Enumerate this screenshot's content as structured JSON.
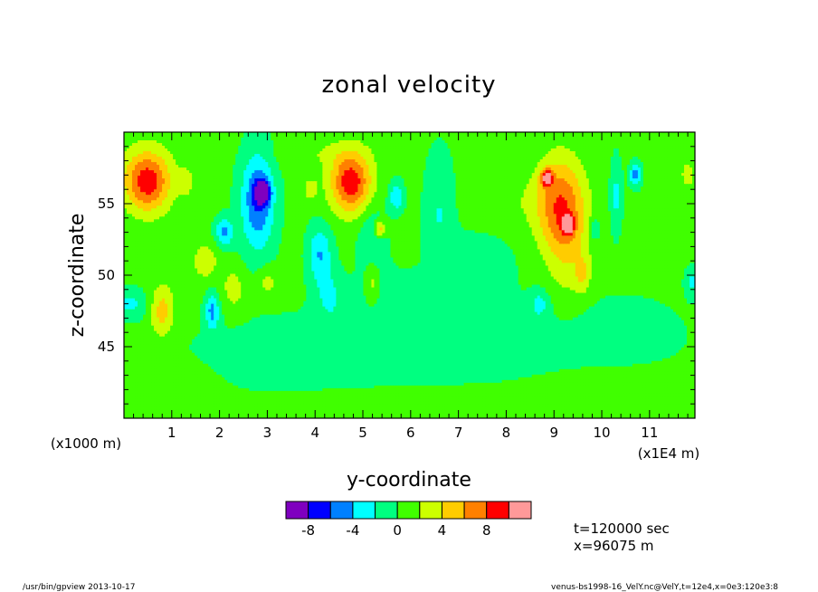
{
  "chart_data": {
    "type": "heatmap",
    "title": "zonal velocity",
    "xlabel": "y-coordinate",
    "ylabel": "z-coordinate",
    "x_scale_note": "(x1E4 m)",
    "y_scale_note": "(x1000 m)",
    "xlim": [
      0,
      11.95
    ],
    "ylim": [
      40,
      60
    ],
    "x_ticks": [
      "1",
      "2",
      "3",
      "4",
      "5",
      "6",
      "7",
      "8",
      "9",
      "10",
      "11"
    ],
    "y_ticks": [
      "45",
      "50",
      "55"
    ],
    "levels": [
      -10,
      -8,
      -6,
      -4,
      -2,
      0,
      2,
      4,
      6,
      8,
      10
    ],
    "level_colors": [
      "#7f00bf",
      "#0000ff",
      "#0080ff",
      "#00ffff",
      "#00ff80",
      "#40ff00",
      "#ccff00",
      "#ffcc00",
      "#ff8000",
      "#ff0000",
      "#ff9999"
    ],
    "colorbar_ticks": [
      "-8",
      "-4",
      "0",
      "4",
      "8"
    ],
    "background_value": 0.5,
    "features": [
      {
        "y": 0.5,
        "z": 56.5,
        "v": 6.5,
        "rx": 0.45,
        "rz": 2.0
      },
      {
        "y": 0.45,
        "z": 56.8,
        "v": 2.5,
        "rx": 0.6,
        "rz": 2.4
      },
      {
        "y": 4.75,
        "z": 56.5,
        "v": 6.5,
        "rx": 0.4,
        "rz": 2.0
      },
      {
        "y": 4.75,
        "z": 56.5,
        "v": 2.5,
        "rx": 0.5,
        "rz": 2.4
      },
      {
        "y": 2.8,
        "z": 55.2,
        "v": -6.5,
        "rx": 0.35,
        "rz": 3.5
      },
      {
        "y": 2.9,
        "z": 55.8,
        "v": -9.0,
        "rx": 0.15,
        "rz": 0.8
      },
      {
        "y": 2.1,
        "z": 53.0,
        "v": -5.0,
        "rx": 0.2,
        "rz": 1.0
      },
      {
        "y": 4.1,
        "z": 51.5,
        "v": -4.5,
        "rx": 0.25,
        "rz": 2.0
      },
      {
        "y": 4.3,
        "z": 48.5,
        "v": -2.5,
        "rx": 0.3,
        "rz": 1.8
      },
      {
        "y": 5.2,
        "z": 52.5,
        "v": -2.5,
        "rx": 0.3,
        "rz": 2.5
      },
      {
        "y": 5.7,
        "z": 55.5,
        "v": -4.5,
        "rx": 0.15,
        "rz": 1.0
      },
      {
        "y": 6.6,
        "z": 54.5,
        "v": -2.5,
        "rx": 0.3,
        "rz": 4.0
      },
      {
        "y": 1.85,
        "z": 47.5,
        "v": -5.0,
        "rx": 0.15,
        "rz": 1.3
      },
      {
        "y": 0.1,
        "z": 48.0,
        "v": -3.0,
        "rx": 0.4,
        "rz": 1.0
      },
      {
        "y": 9.1,
        "z": 55.0,
        "v": 6.0,
        "rx": 0.5,
        "rz": 3.2
      },
      {
        "y": 8.85,
        "z": 56.8,
        "v": 9.0,
        "rx": 0.12,
        "rz": 0.6
      },
      {
        "y": 9.3,
        "z": 53.5,
        "v": 8.5,
        "rx": 0.12,
        "rz": 0.6
      },
      {
        "y": 9.3,
        "z": 52.5,
        "v": 3.0,
        "rx": 0.45,
        "rz": 4.2
      },
      {
        "y": 9.6,
        "z": 50.0,
        "v": 3.0,
        "rx": 0.15,
        "rz": 1.2
      },
      {
        "y": 10.3,
        "z": 55.5,
        "v": -3.0,
        "rx": 0.12,
        "rz": 2.5
      },
      {
        "y": 10.7,
        "z": 57.0,
        "v": -5.5,
        "rx": 0.12,
        "rz": 0.8
      },
      {
        "y": 9.85,
        "z": 53.2,
        "v": -3.0,
        "rx": 0.12,
        "rz": 0.8
      },
      {
        "y": 8.7,
        "z": 48.0,
        "v": -3.0,
        "rx": 0.2,
        "rz": 1.0
      },
      {
        "y": 11.9,
        "z": 49.5,
        "v": -3.0,
        "rx": 0.15,
        "rz": 1.0
      },
      {
        "y": 11.8,
        "z": 57.0,
        "v": 2.5,
        "rx": 0.15,
        "rz": 1.0
      },
      {
        "y": 0.8,
        "z": 47.5,
        "v": 4.5,
        "rx": 0.25,
        "rz": 1.8
      },
      {
        "y": 1.7,
        "z": 51.0,
        "v": 2.5,
        "rx": 0.3,
        "rz": 1.5
      },
      {
        "y": 2.3,
        "z": 49.0,
        "v": 2.5,
        "rx": 0.25,
        "rz": 1.5
      },
      {
        "y": 3.0,
        "z": 49.5,
        "v": 2.5,
        "rx": 0.2,
        "rz": 1.0
      },
      {
        "y": 5.35,
        "z": 53.2,
        "v": 5.5,
        "rx": 0.12,
        "rz": 0.6
      },
      {
        "y": 5.2,
        "z": 49.5,
        "v": 3.0,
        "rx": 0.15,
        "rz": 1.5
      },
      {
        "y": 1.3,
        "z": 56.5,
        "v": 2.5,
        "rx": 0.15,
        "rz": 1.0
      },
      {
        "y": 3.9,
        "z": 56.0,
        "v": 2.5,
        "rx": 0.15,
        "rz": 0.8
      },
      {
        "y": 7.2,
        "z": 45.0,
        "v": -1.5,
        "rx": 3.0,
        "rz": 3.0
      },
      {
        "y": 3.5,
        "z": 44.0,
        "v": -1.2,
        "rx": 2.5,
        "rz": 3.0
      },
      {
        "y": 5.8,
        "z": 48.5,
        "v": -1.2,
        "rx": 1.0,
        "rz": 2.0
      },
      {
        "y": 10.5,
        "z": 46.0,
        "v": -1.2,
        "rx": 1.2,
        "rz": 2.5
      },
      {
        "y": 6.0,
        "z": 41.0,
        "v": 1.2,
        "rx": 3.0,
        "rz": 1.2
      },
      {
        "y": 10.5,
        "z": 42.0,
        "v": 1.3,
        "rx": 1.8,
        "rz": 1.5
      },
      {
        "y": 0.6,
        "z": 42.5,
        "v": 1.3,
        "rx": 1.2,
        "rz": 1.5
      },
      {
        "y": 8.0,
        "z": 55.0,
        "v": 1.2,
        "rx": 0.8,
        "rz": 2.0
      },
      {
        "y": 7.5,
        "z": 51.0,
        "v": -1.2,
        "rx": 0.8,
        "rz": 3.0
      },
      {
        "y": 4.0,
        "z": 58.5,
        "v": 1.2,
        "rx": 1.0,
        "rz": 1.0
      }
    ]
  },
  "info": {
    "time_label": "t=120000 sec",
    "position_label": "x=96075 m"
  },
  "footer": {
    "left": "/usr/bin/gpview  2013-10-17",
    "right": "venus-bs1998-16_VelY.nc@VelY,t=12e4,x=0e3:120e3:8"
  }
}
